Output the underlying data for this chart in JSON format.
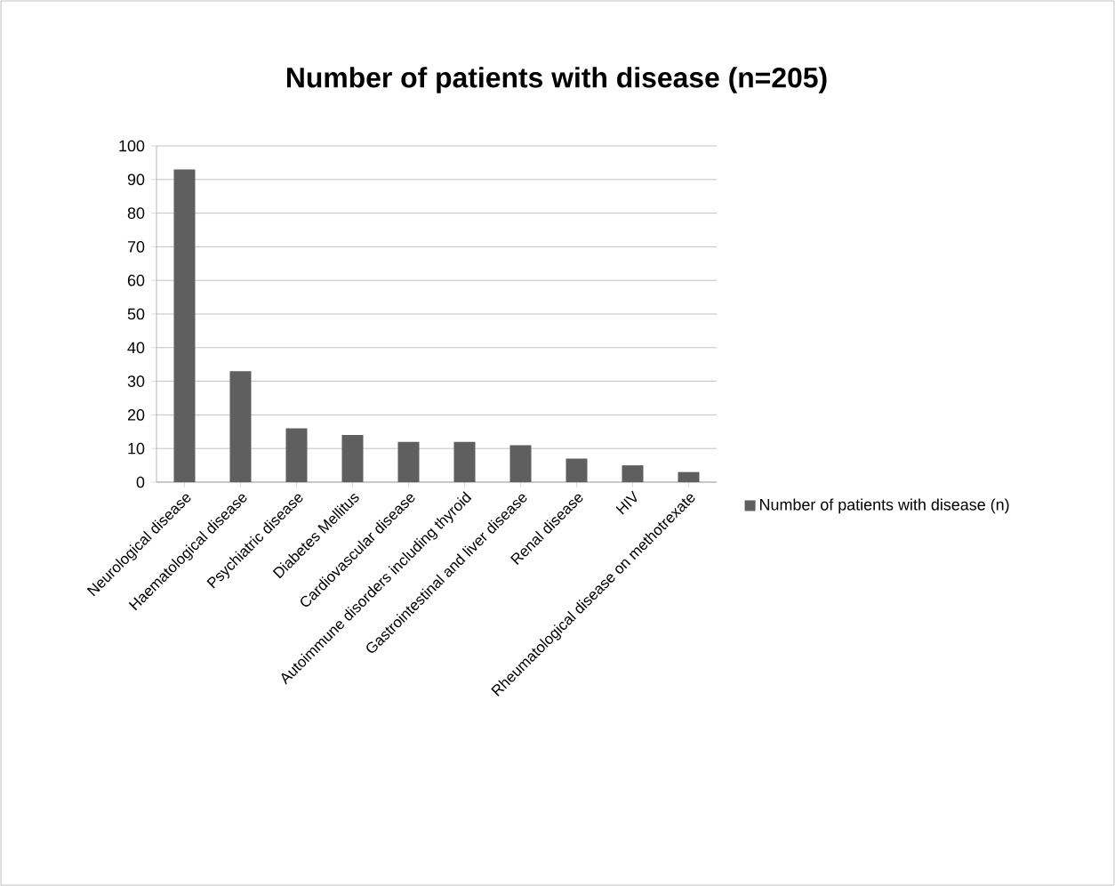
{
  "chart_data": {
    "type": "bar",
    "title": "Number of patients with disease (n=205)",
    "categories": [
      "Neurological disease",
      "Haematological disease",
      "Psychiatric disease",
      "Diabetes Mellitus",
      "Cardiovascular disease",
      "Autoimmune disorders including thyroid",
      "Gastrointestinal and liver disease",
      "Renal disease",
      "HIV",
      "Rheumatological disease on methotrexate"
    ],
    "series": [
      {
        "name": "Number of patients with disease (n)",
        "color": "#5f5f5f",
        "values": [
          93,
          33,
          16,
          14,
          12,
          12,
          11,
          7,
          5,
          3
        ]
      }
    ],
    "ylim": [
      0,
      100
    ],
    "yticks": [
      0,
      10,
      20,
      30,
      40,
      50,
      60,
      70,
      80,
      90,
      100
    ],
    "grid": "y",
    "legend": "right"
  }
}
